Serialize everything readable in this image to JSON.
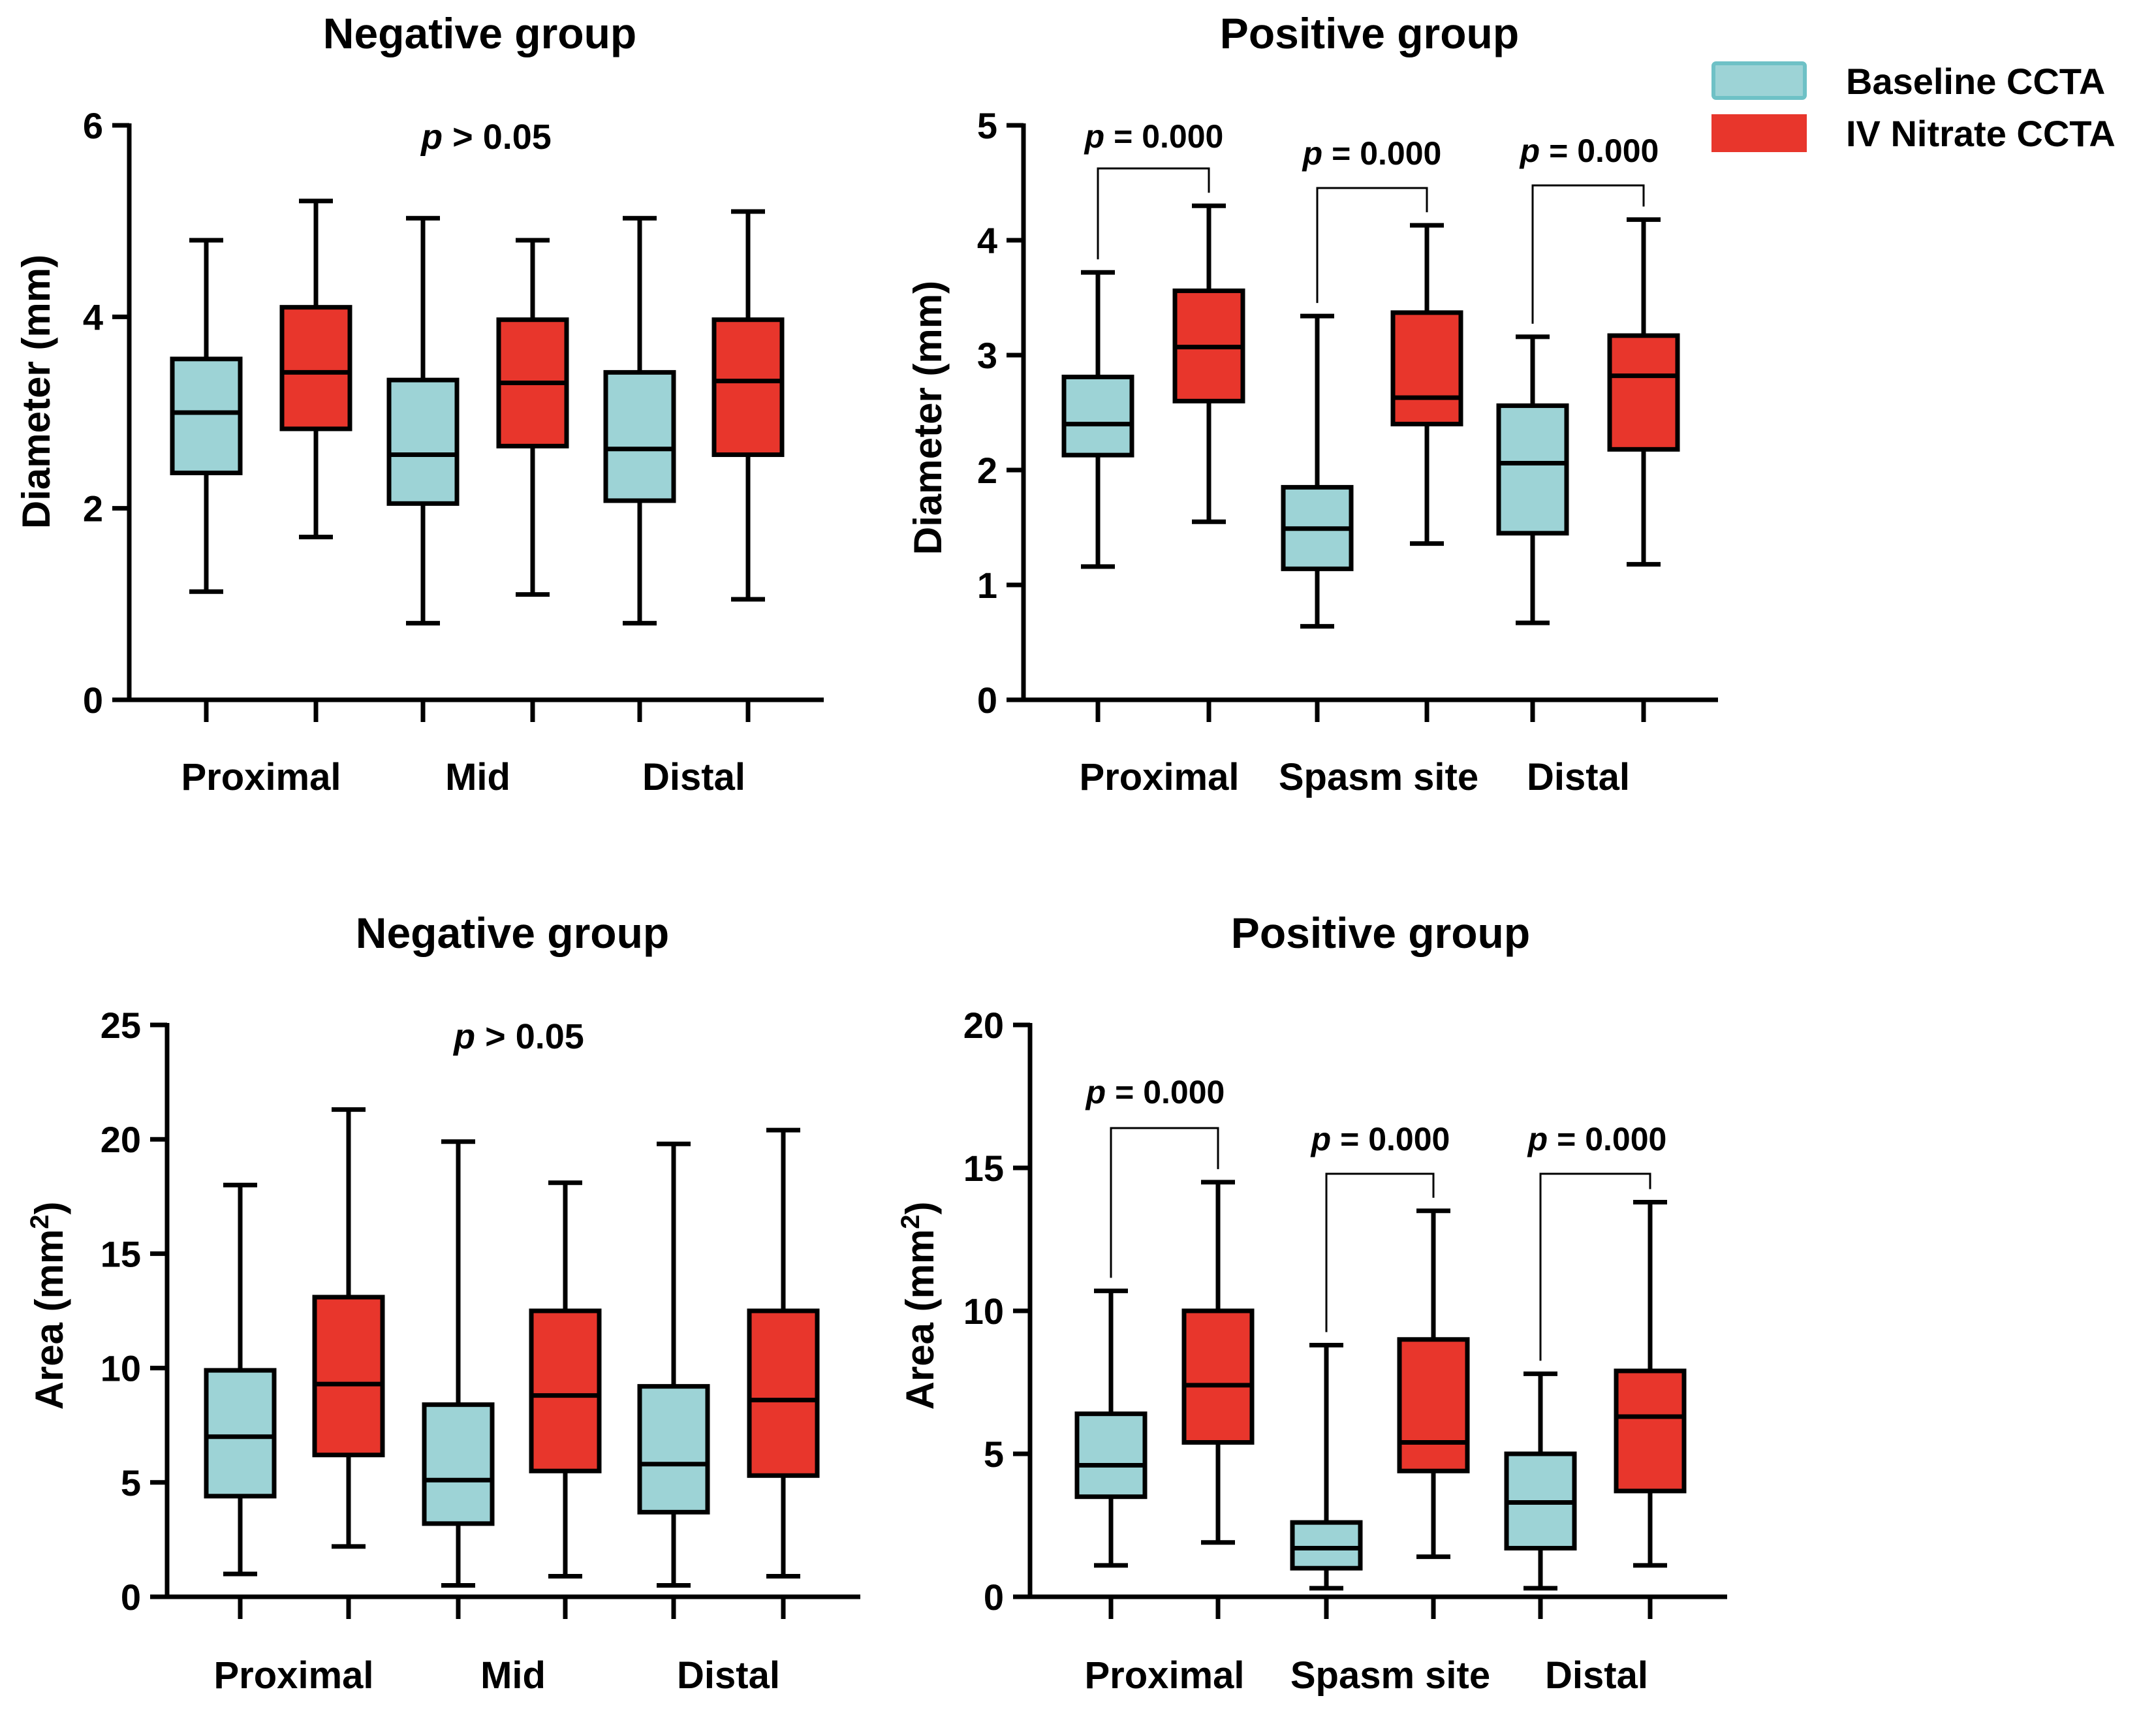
{
  "legend": {
    "items": [
      {
        "label": "Baseline CCTA",
        "color": "#9dd3d6",
        "border": "#6ec1c6"
      },
      {
        "label": "IV Nitrate CCTA",
        "color": "#e8362c",
        "border": "#e8362c"
      }
    ]
  },
  "chart_data": [
    {
      "type": "boxplot",
      "title": "Negative group",
      "ylabel": "Diameter (mm)",
      "ylim": [
        0,
        6
      ],
      "yticks": [
        0,
        2,
        4,
        6
      ],
      "categories": [
        "Proximal",
        "Mid",
        "Distal"
      ],
      "series": [
        {
          "name": "Baseline CCTA",
          "boxes": [
            {
              "min": 1.13,
              "q1": 2.37,
              "median": 3.0,
              "q3": 3.56,
              "max": 4.8
            },
            {
              "min": 0.8,
              "q1": 2.05,
              "median": 2.56,
              "q3": 3.34,
              "max": 5.03
            },
            {
              "min": 0.8,
              "q1": 2.08,
              "median": 2.62,
              "q3": 3.42,
              "max": 5.03
            }
          ]
        },
        {
          "name": "IV Nitrate CCTA",
          "boxes": [
            {
              "min": 1.7,
              "q1": 2.83,
              "median": 3.42,
              "q3": 4.1,
              "max": 5.21
            },
            {
              "min": 1.1,
              "q1": 2.65,
              "median": 3.31,
              "q3": 3.97,
              "max": 4.8
            },
            {
              "min": 1.05,
              "q1": 2.56,
              "median": 3.33,
              "q3": 3.97,
              "max": 5.1
            }
          ]
        }
      ],
      "annotations": [
        {
          "prefix": "p",
          "text": " > 0.05"
        }
      ]
    },
    {
      "type": "boxplot",
      "title": "Positive group",
      "ylabel": "Diameter (mm)",
      "ylim": [
        0,
        5
      ],
      "yticks": [
        0,
        1,
        2,
        3,
        4,
        5
      ],
      "categories": [
        "Proximal",
        "Spasm site",
        "Distal"
      ],
      "series": [
        {
          "name": "Baseline CCTA",
          "boxes": [
            {
              "min": 1.16,
              "q1": 2.13,
              "median": 2.4,
              "q3": 2.81,
              "max": 3.72
            },
            {
              "min": 0.64,
              "q1": 1.14,
              "median": 1.49,
              "q3": 1.85,
              "max": 3.34
            },
            {
              "min": 0.67,
              "q1": 1.45,
              "median": 2.06,
              "q3": 2.56,
              "max": 3.16
            }
          ]
        },
        {
          "name": "IV Nitrate CCTA",
          "boxes": [
            {
              "min": 1.55,
              "q1": 2.6,
              "median": 3.07,
              "q3": 3.56,
              "max": 4.3
            },
            {
              "min": 1.36,
              "q1": 2.4,
              "median": 2.63,
              "q3": 3.37,
              "max": 4.13
            },
            {
              "min": 1.18,
              "q1": 2.18,
              "median": 2.82,
              "q3": 3.17,
              "max": 4.18
            }
          ]
        }
      ],
      "annotations": [
        {
          "prefix": "p",
          "text": " = 0.000"
        },
        {
          "prefix": "p",
          "text": " = 0.000"
        },
        {
          "prefix": "p",
          "text": " = 0.000"
        }
      ]
    },
    {
      "type": "boxplot",
      "title": "Negative group",
      "ylabel": "Area (mm",
      "ylabel_sup": "2",
      "ylabel_end": ")",
      "ylim": [
        0,
        25
      ],
      "yticks": [
        0,
        5,
        10,
        15,
        20,
        25
      ],
      "categories": [
        "Proximal",
        "Mid",
        "Distal"
      ],
      "series": [
        {
          "name": "Baseline CCTA",
          "boxes": [
            {
              "min": 1.0,
              "q1": 4.4,
              "median": 7.0,
              "q3": 9.9,
              "max": 18.0
            },
            {
              "min": 0.5,
              "q1": 3.2,
              "median": 5.1,
              "q3": 8.4,
              "max": 19.9
            },
            {
              "min": 0.5,
              "q1": 3.7,
              "median": 5.8,
              "q3": 9.2,
              "max": 19.8
            }
          ]
        },
        {
          "name": "IV Nitrate CCTA",
          "boxes": [
            {
              "min": 2.2,
              "q1": 6.2,
              "median": 9.3,
              "q3": 13.1,
              "max": 21.3
            },
            {
              "min": 0.9,
              "q1": 5.5,
              "median": 8.8,
              "q3": 12.5,
              "max": 18.1
            },
            {
              "min": 0.9,
              "q1": 5.3,
              "median": 8.6,
              "q3": 12.5,
              "max": 20.4
            }
          ]
        }
      ],
      "annotations": [
        {
          "prefix": "p",
          "text": " > 0.05"
        }
      ]
    },
    {
      "type": "boxplot",
      "title": "Positive group",
      "ylabel": "Area (mm",
      "ylabel_sup": "2",
      "ylabel_end": ")",
      "ylim": [
        0,
        20
      ],
      "yticks": [
        0,
        5,
        10,
        15,
        20
      ],
      "categories": [
        "Proximal",
        "Spasm site",
        "Distal"
      ],
      "series": [
        {
          "name": "Baseline CCTA",
          "boxes": [
            {
              "min": 1.1,
              "q1": 3.5,
              "median": 4.6,
              "q3": 6.4,
              "max": 10.7
            },
            {
              "min": 0.3,
              "q1": 1.0,
              "median": 1.7,
              "q3": 2.6,
              "max": 8.8
            },
            {
              "min": 0.3,
              "q1": 1.7,
              "median": 3.3,
              "q3": 5.0,
              "max": 7.8
            }
          ]
        },
        {
          "name": "IV Nitrate CCTA",
          "boxes": [
            {
              "min": 1.9,
              "q1": 5.4,
              "median": 7.4,
              "q3": 10.0,
              "max": 14.5
            },
            {
              "min": 1.4,
              "q1": 4.4,
              "median": 5.4,
              "q3": 9.0,
              "max": 13.5
            },
            {
              "min": 1.1,
              "q1": 3.7,
              "median": 6.3,
              "q3": 7.9,
              "max": 13.8
            }
          ]
        }
      ],
      "annotations": [
        {
          "prefix": "p",
          "text": " = 0.000"
        },
        {
          "prefix": "p",
          "text": " = 0.000"
        },
        {
          "prefix": "p",
          "text": " = 0.000"
        }
      ]
    }
  ]
}
